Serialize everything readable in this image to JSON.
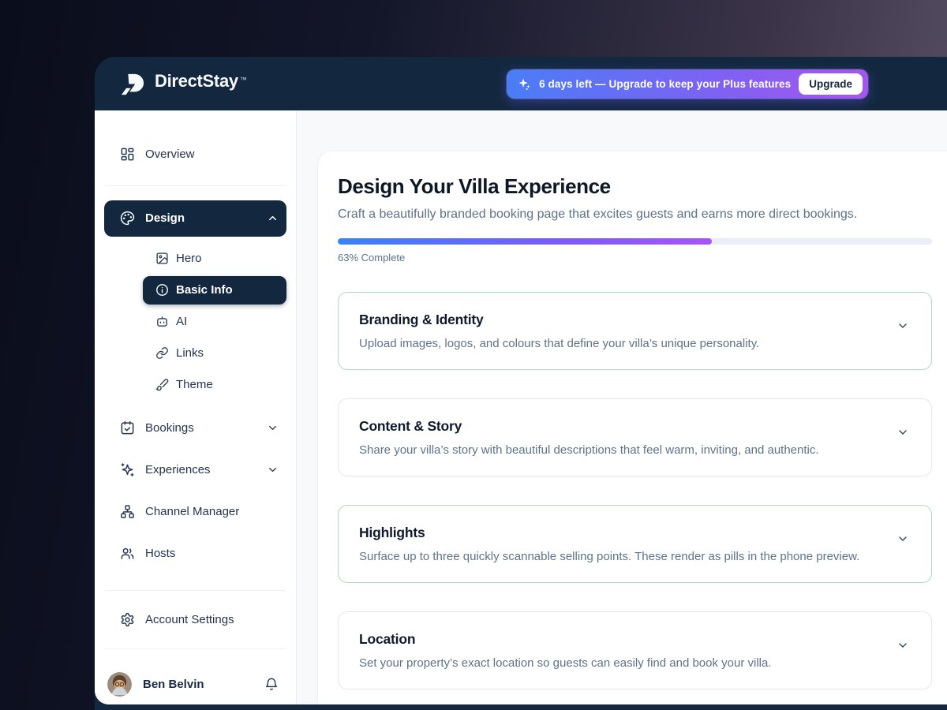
{
  "window": {
    "brand": "DirectStay",
    "trademark": "™"
  },
  "banner": {
    "icon": "sparkle-icon",
    "text": "6 days left — Upgrade to keep your Plus features",
    "button_label": "Upgrade"
  },
  "sidebar": {
    "items": [
      {
        "icon": "dashboard-grid-icon",
        "label": "Overview"
      },
      {
        "icon": "palette-icon",
        "label": "Design",
        "state": "expanded",
        "active": true
      },
      {
        "icon": "calendar-check-icon",
        "label": "Bookings",
        "state": "collapsed"
      },
      {
        "icon": "sparkles-icon",
        "label": "Experiences",
        "state": "collapsed"
      },
      {
        "icon": "sitemap-icon",
        "label": "Channel Manager"
      },
      {
        "icon": "people-icon",
        "label": "Hosts"
      }
    ],
    "design_children": [
      {
        "icon": "image-icon",
        "label": "Hero"
      },
      {
        "icon": "info-icon",
        "label": "Basic Info",
        "active": true
      },
      {
        "icon": "robot-icon",
        "label": "AI"
      },
      {
        "icon": "link-icon",
        "label": "Links"
      },
      {
        "icon": "brush-icon",
        "label": "Theme"
      }
    ],
    "account_settings_label": "Account Settings",
    "user": {
      "name": "Ben Belvin",
      "notification_icon": "bell-icon"
    }
  },
  "main": {
    "title": "Design Your Villa Experience",
    "subtitle": "Craft a beautifully branded booking page that excites guests and earns more direct bookings.",
    "progress": {
      "percent": 63,
      "label": "63% Complete"
    },
    "sections": [
      {
        "title": "Branding & Identity",
        "description": "Upload images, logos, and colours that define your villa’s unique personality.",
        "highlighted": true
      },
      {
        "title": "Content & Story",
        "description": "Share your villa’s story with beautiful descriptions that feel warm, inviting, and authentic.",
        "highlighted": false
      },
      {
        "title": "Highlights",
        "description": "Surface up to three quickly scannable selling points. These render as pills in the phone preview.",
        "highlighted": true
      },
      {
        "title": "Location",
        "description": "Set your property’s exact location so guests can easily find and book your villa.",
        "highlighted": false
      }
    ]
  },
  "colors": {
    "header_navy": "#13283f",
    "banner_gradient_start": "#4a7df6",
    "banner_gradient_end": "#a656f0",
    "progress_gradient_start": "#3b82f6",
    "progress_gradient_end": "#a855f7",
    "highlight_border": "#aadfba",
    "default_border": "#e3e8ef"
  }
}
